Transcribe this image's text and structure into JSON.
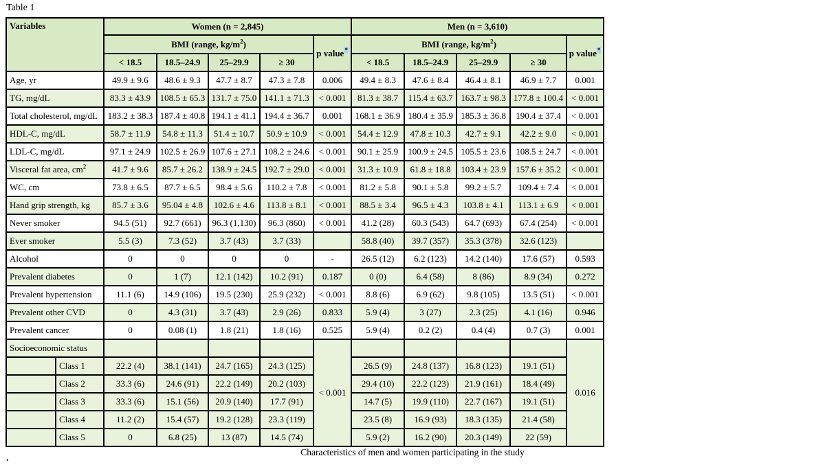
{
  "title": "Table 1",
  "caption": "Characteristics of men and women participating in the study",
  "footnote_dot": ".",
  "colors": {
    "header_green": "#d8eac3",
    "row_green": "#e9f3dc",
    "border": "#000000",
    "asterisk_highlight": "#b8d2ee"
  },
  "header": {
    "variables": "Variables",
    "women_group": "Women (n = 2,845)",
    "men_group": "Men (n = 3,610)",
    "bmi_prefix": "BMI (range, kg/m",
    "bmi_sup": "2",
    "bmi_suffix": ")",
    "p_label": "p value",
    "p_sup": "*",
    "bins": [
      "< 18.5",
      "18.5–24.9",
      "25–29.9",
      "≥ 30"
    ]
  },
  "rows": [
    {
      "label": "Age, yr",
      "shade": false,
      "women": [
        "49.9 ± 9.6",
        "48.6 ± 9.3",
        "47.7 ± 8.7",
        "47.3 ± 7.8"
      ],
      "women_p": "0.006",
      "men": [
        "49.4 ± 8.3",
        "47.6 ± 8.4",
        "46.4 ± 8.1",
        "46.9 ± 7.7"
      ],
      "men_p": "0.001"
    },
    {
      "label": "TG, mg/dL",
      "shade": true,
      "women": [
        "83.3 ± 43.9",
        "108.5 ± 65.3",
        "131.7 ± 75.0",
        "141.1 ± 71.3"
      ],
      "women_p": "< 0.001",
      "men": [
        "81.3 ± 38.7",
        "115.4 ± 63.7",
        "163.7 ± 98.3",
        "177.8 ± 100.4"
      ],
      "men_p": "< 0.001"
    },
    {
      "label": "Total cholesterol, mg/dL",
      "shade": false,
      "women": [
        "183.2 ± 38.3",
        "187.4 ± 40.8",
        "194.1 ± 41.1",
        "194.4 ± 36.7"
      ],
      "women_p": "0.001",
      "men": [
        "168.1 ± 36.9",
        "180.4 ± 35.9",
        "185.3 ± 36.8",
        "190.4 ± 37.4"
      ],
      "men_p": "< 0.001"
    },
    {
      "label": "HDL-C, mg/dL",
      "shade": true,
      "women": [
        "58.7 ± 11.9",
        "54.8 ± 11.3",
        "51.4 ± 10.7",
        "50.9 ± 10.9"
      ],
      "women_p": "< 0.001",
      "men": [
        "54.4 ± 12.9",
        "47.8 ± 10.3",
        "42.7 ± 9.1",
        "42.2 ± 9.0"
      ],
      "men_p": "< 0.001"
    },
    {
      "label": "LDL-C, mg/dL",
      "shade": false,
      "women": [
        "97.1 ± 24.9",
        "102.5 ± 26.9",
        "107.6 ± 27.1",
        "108.2 ± 24.6"
      ],
      "women_p": "< 0.001",
      "men": [
        "90.1 ± 25.9",
        "100.9 ± 24.5",
        "105.5 ± 23.6",
        "108.5 ± 24.7"
      ],
      "men_p": "< 0.001"
    },
    {
      "label": "Visceral fat area, cm",
      "label_sup": "2",
      "shade": true,
      "women": [
        "41.7 ± 9.6",
        "85.7 ± 26.2",
        "138.9 ± 24.5",
        "192.7 ± 29.0"
      ],
      "women_p": "< 0.001",
      "men": [
        "31.3 ± 10.9",
        "61.8 ± 18.8",
        "103.4 ± 23.9",
        "157.6 ± 35.2"
      ],
      "men_p": "< 0.001"
    },
    {
      "label": "WC, cm",
      "shade": false,
      "women": [
        "73.8 ± 6.5",
        "87.7 ± 6.5",
        "98.4 ± 5.6",
        "110.2 ± 7.8"
      ],
      "women_p": "< 0.001",
      "men": [
        "81.2 ± 5.8",
        "90.1 ± 5.8",
        "99.2 ± 5.7",
        "109.4 ± 7.4"
      ],
      "men_p": "< 0.001"
    },
    {
      "label": "Hand grip strength, kg",
      "shade": true,
      "women": [
        "85.7 ± 3.6",
        "95.04 ± 4.8",
        "102.6 ± 4.6",
        "113.8 ± 8.1"
      ],
      "women_p": "< 0.001",
      "men": [
        "88.5 ± 3.4",
        "96.5 ± 4.3",
        "103.8 ± 4.1",
        "113.1 ± 6.9"
      ],
      "men_p": "< 0.001"
    },
    {
      "label": "Never smoker",
      "shade": false,
      "women": [
        "94.5 (51)",
        "92.7 (661)",
        "96.3 (1,130)",
        "96.3 (860)"
      ],
      "women_p": "< 0.001",
      "men": [
        "41.2 (28)",
        "60.3 (543)",
        "64.7 (693)",
        "67.4 (254)"
      ],
      "men_p": "< 0.001"
    },
    {
      "label": "Ever smoker",
      "shade": true,
      "women": [
        "5.5 (3)",
        "7.3 (52)",
        "3.7 (43)",
        "3.7 (33)"
      ],
      "women_p": "",
      "men": [
        "58.8 (40)",
        "39.7 (357)",
        "35.3 (378)",
        "32.6 (123)"
      ],
      "men_p": ""
    },
    {
      "label": "Alcohol",
      "shade": false,
      "women": [
        "0",
        "0",
        "0",
        "0"
      ],
      "women_p": "-",
      "men": [
        "26.5 (12)",
        "6.2 (123)",
        "14.2 (140)",
        "17.6 (57)"
      ],
      "men_p": "0.593"
    },
    {
      "label": "Prevalent diabetes",
      "shade": true,
      "women": [
        "0",
        "1 (7)",
        "12.1 (142)",
        "10.2 (91)"
      ],
      "women_p": "0.187",
      "men": [
        "0 (0)",
        "6.4 (58)",
        "8 (86)",
        "8.9 (34)"
      ],
      "men_p": "0.272"
    },
    {
      "label": "Prevalent hypertension",
      "shade": false,
      "women": [
        "11.1 (6)",
        "14.9 (106)",
        "19.5 (230)",
        "25.9 (232)"
      ],
      "women_p": "< 0.001",
      "men": [
        "8.8 (6)",
        "6.9 (62)",
        "9.8 (105)",
        "13.5 (51)"
      ],
      "men_p": "< 0.001"
    },
    {
      "label": "Prevalent other CVD",
      "shade": true,
      "women": [
        "0",
        "4.3 (31)",
        "3.7 (43)",
        "2.9 (26)"
      ],
      "women_p": "0.833",
      "men": [
        "5.9 (4)",
        "3 (27)",
        "2.3 (25)",
        "4.1 (16)"
      ],
      "men_p": "0.946"
    },
    {
      "label": "Prevalent cancer",
      "shade": false,
      "women": [
        "0",
        "0.08 (1)",
        "1.8 (21)",
        "1.8 (16)"
      ],
      "women_p": "0.525",
      "men": [
        "5.9 (4)",
        "0.2 (2)",
        "0.4 (4)",
        "0.7 (3)"
      ],
      "men_p": "0.001"
    },
    {
      "label": "Socioeconomic status",
      "shade": true,
      "p_rowspan": 6,
      "women": [
        "",
        "",
        "",
        ""
      ],
      "women_p": "< 0.001",
      "men": [
        "",
        "",
        "",
        ""
      ],
      "men_p": "0.016"
    },
    {
      "label": "Class 1",
      "shade": true,
      "indent": true,
      "women": [
        "22.2 (4)",
        "38.1 (141)",
        "24.7 (165)",
        "24.3 (125)"
      ],
      "men": [
        "26.5 (9)",
        "24.8 (137)",
        "16.8 (123)",
        "19.1 (51)"
      ]
    },
    {
      "label": "Class 2",
      "shade": true,
      "indent": true,
      "women": [
        "33.3 (6)",
        "24.6 (91)",
        "22.2 (149)",
        "20.2 (103)"
      ],
      "men": [
        "29.4 (10)",
        "22.2 (123)",
        "21.9 (161)",
        "18.4 (49)"
      ]
    },
    {
      "label": "Class 3",
      "shade": true,
      "indent": true,
      "women": [
        "33.3 (6)",
        "15.1 (56)",
        "20.9 (140)",
        "17.7 (91)"
      ],
      "men": [
        "14.7 (5)",
        "19.9 (110)",
        "22.7 (167)",
        "19.1 (51)"
      ]
    },
    {
      "label": "Class 4",
      "shade": true,
      "indent": true,
      "women": [
        "11.2 (2)",
        "15.4 (57)",
        "19.2 (128)",
        "23.3 (119)"
      ],
      "men": [
        "23.5 (8)",
        "16.9 (93)",
        "18.3 (135)",
        "21.4 (58)"
      ]
    },
    {
      "label": "Class 5",
      "shade": true,
      "indent": true,
      "women": [
        "0",
        "6.8 (25)",
        "13 (87)",
        "14.5 (74)"
      ],
      "men": [
        "5.9 (2)",
        "16.2 (90)",
        "20.3 (149)",
        "22 (59)"
      ]
    }
  ]
}
